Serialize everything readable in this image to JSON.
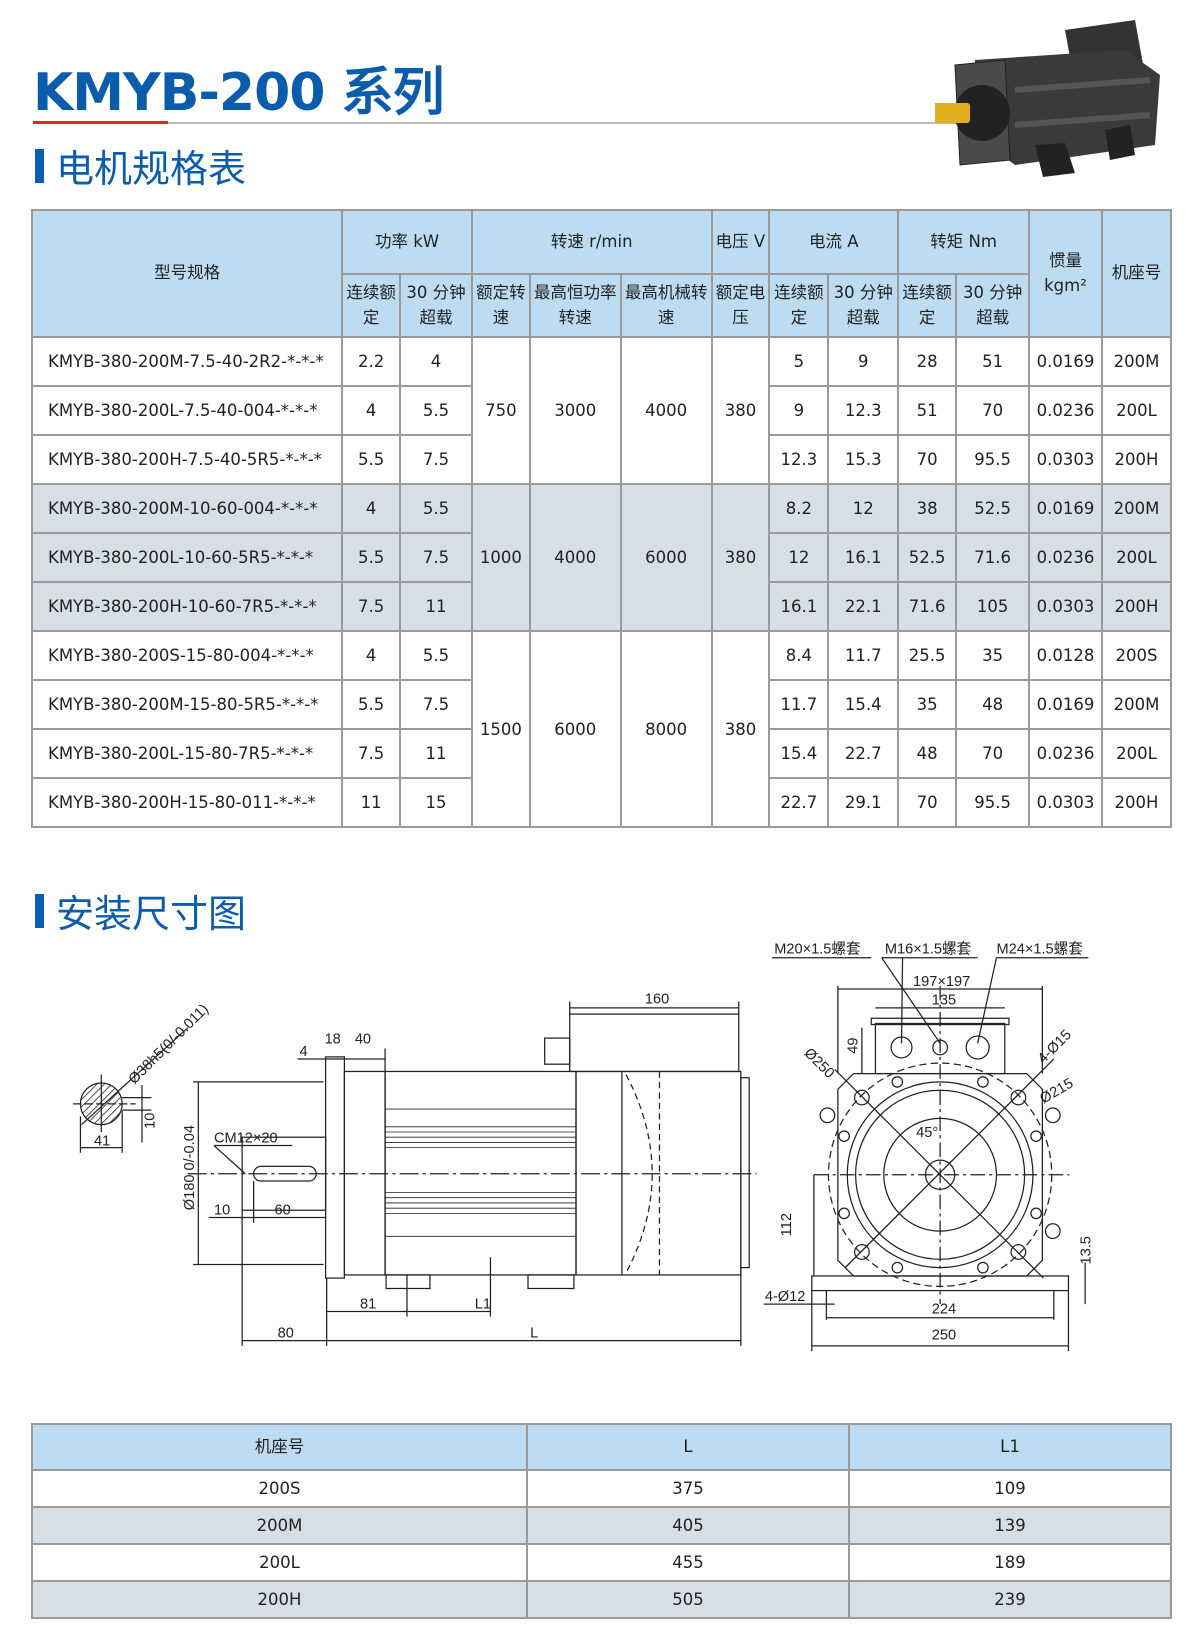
{
  "title": "KMYB-200 系列",
  "sections": {
    "spec": "电机规格表",
    "install": "安装尺寸图"
  },
  "colors": {
    "brand": "#0b5cab",
    "accent_rule": "#d42a22",
    "header_bg": "#bddcf2",
    "alt_row_bg": "#d7dee5"
  },
  "spec_table": {
    "headers": {
      "model": "型号规格",
      "power": "功率 kW",
      "speed": "转速 r/min",
      "voltage": "电压 V",
      "current": "电流 A",
      "torque": "转矩 Nm",
      "inertia": "惯量 kgm²",
      "frame": "机座号",
      "sub": [
        "连续额定",
        "30 分钟超载",
        "额定转速",
        "最高恒功率转速",
        "最高机械转速",
        "额定电压",
        "连续额定",
        "30 分钟超载",
        "连续额定",
        "30 分钟超载"
      ]
    },
    "groups": [
      {
        "rated_speed": "750",
        "max_const_power_speed": "3000",
        "max_mech_speed": "4000",
        "voltage": "380",
        "rows": [
          {
            "model": "KMYB-380-200M-7.5-40-2R2-*-*-*",
            "p_cont": "2.2",
            "p_30": "4",
            "i_cont": "5",
            "i_30": "9",
            "t_cont": "28",
            "t_30": "51",
            "inertia": "0.0169",
            "frame": "200M"
          },
          {
            "model": "KMYB-380-200L-7.5-40-004-*-*-*",
            "p_cont": "4",
            "p_30": "5.5",
            "i_cont": "9",
            "i_30": "12.3",
            "t_cont": "51",
            "t_30": "70",
            "inertia": "0.0236",
            "frame": "200L"
          },
          {
            "model": "KMYB-380-200H-7.5-40-5R5-*-*-*",
            "p_cont": "5.5",
            "p_30": "7.5",
            "i_cont": "12.3",
            "i_30": "15.3",
            "t_cont": "70",
            "t_30": "95.5",
            "inertia": "0.0303",
            "frame": "200H"
          }
        ]
      },
      {
        "rated_speed": "1000",
        "max_const_power_speed": "4000",
        "max_mech_speed": "6000",
        "voltage": "380",
        "rows": [
          {
            "model": "KMYB-380-200M-10-60-004-*-*-*",
            "p_cont": "4",
            "p_30": "5.5",
            "i_cont": "8.2",
            "i_30": "12",
            "t_cont": "38",
            "t_30": "52.5",
            "inertia": "0.0169",
            "frame": "200M"
          },
          {
            "model": "KMYB-380-200L-10-60-5R5-*-*-*",
            "p_cont": "5.5",
            "p_30": "7.5",
            "i_cont": "12",
            "i_30": "16.1",
            "t_cont": "52.5",
            "t_30": "71.6",
            "inertia": "0.0236",
            "frame": "200L"
          },
          {
            "model": "KMYB-380-200H-10-60-7R5-*-*-*",
            "p_cont": "7.5",
            "p_30": "11",
            "i_cont": "16.1",
            "i_30": "22.1",
            "t_cont": "71.6",
            "t_30": "105",
            "inertia": "0.0303",
            "frame": "200H"
          }
        ]
      },
      {
        "rated_speed": "1500",
        "max_const_power_speed": "6000",
        "max_mech_speed": "8000",
        "voltage": "380",
        "rows": [
          {
            "model": "KMYB-380-200S-15-80-004-*-*-*",
            "p_cont": "4",
            "p_30": "5.5",
            "i_cont": "8.4",
            "i_30": "11.7",
            "t_cont": "25.5",
            "t_30": "35",
            "inertia": "0.0128",
            "frame": "200S"
          },
          {
            "model": "KMYB-380-200M-15-80-5R5-*-*-*",
            "p_cont": "5.5",
            "p_30": "7.5",
            "i_cont": "11.7",
            "i_30": "15.4",
            "t_cont": "35",
            "t_30": "48",
            "inertia": "0.0169",
            "frame": "200M"
          },
          {
            "model": "KMYB-380-200L-15-80-7R5-*-*-*",
            "p_cont": "7.5",
            "p_30": "11",
            "i_cont": "15.4",
            "i_30": "22.7",
            "t_cont": "48",
            "t_30": "70",
            "inertia": "0.0236",
            "frame": "200L"
          },
          {
            "model": "KMYB-380-200H-15-80-011-*-*-*",
            "p_cont": "11",
            "p_30": "15",
            "i_cont": "22.7",
            "i_30": "29.1",
            "t_cont": "70",
            "t_30": "95.5",
            "inertia": "0.0303",
            "frame": "200H"
          }
        ]
      }
    ]
  },
  "drawing": {
    "labels": {
      "shaft": "Ø38h5(0/-0.011)",
      "key_h": "10",
      "shaft_w": "41",
      "cm": "CM12×20",
      "d180": "Ø180 0/-0.04",
      "k10": "10",
      "k60": "60",
      "d4": "4",
      "d18": "18",
      "d40": "40",
      "d160": "160",
      "d81": "81",
      "dL1": "L1",
      "d80": "80",
      "dL": "L",
      "m20": "M20×1.5螺套",
      "m16": "M16×1.5螺套",
      "m24": "M24×1.5螺套",
      "sq": "197×197",
      "d135": "135",
      "d49": "49",
      "d250c": "Ø250",
      "h15": "4-Ø15",
      "d215": "Ø215",
      "ang": "45°",
      "d112": "112",
      "d13": "13.5",
      "h12": "4-Ø12",
      "d224": "224",
      "d250": "250"
    }
  },
  "dims_table": {
    "headers": [
      "机座号",
      "L",
      "L1"
    ],
    "rows": [
      [
        "200S",
        "375",
        "109"
      ],
      [
        "200M",
        "405",
        "139"
      ],
      [
        "200L",
        "455",
        "189"
      ],
      [
        "200H",
        "505",
        "239"
      ]
    ]
  }
}
